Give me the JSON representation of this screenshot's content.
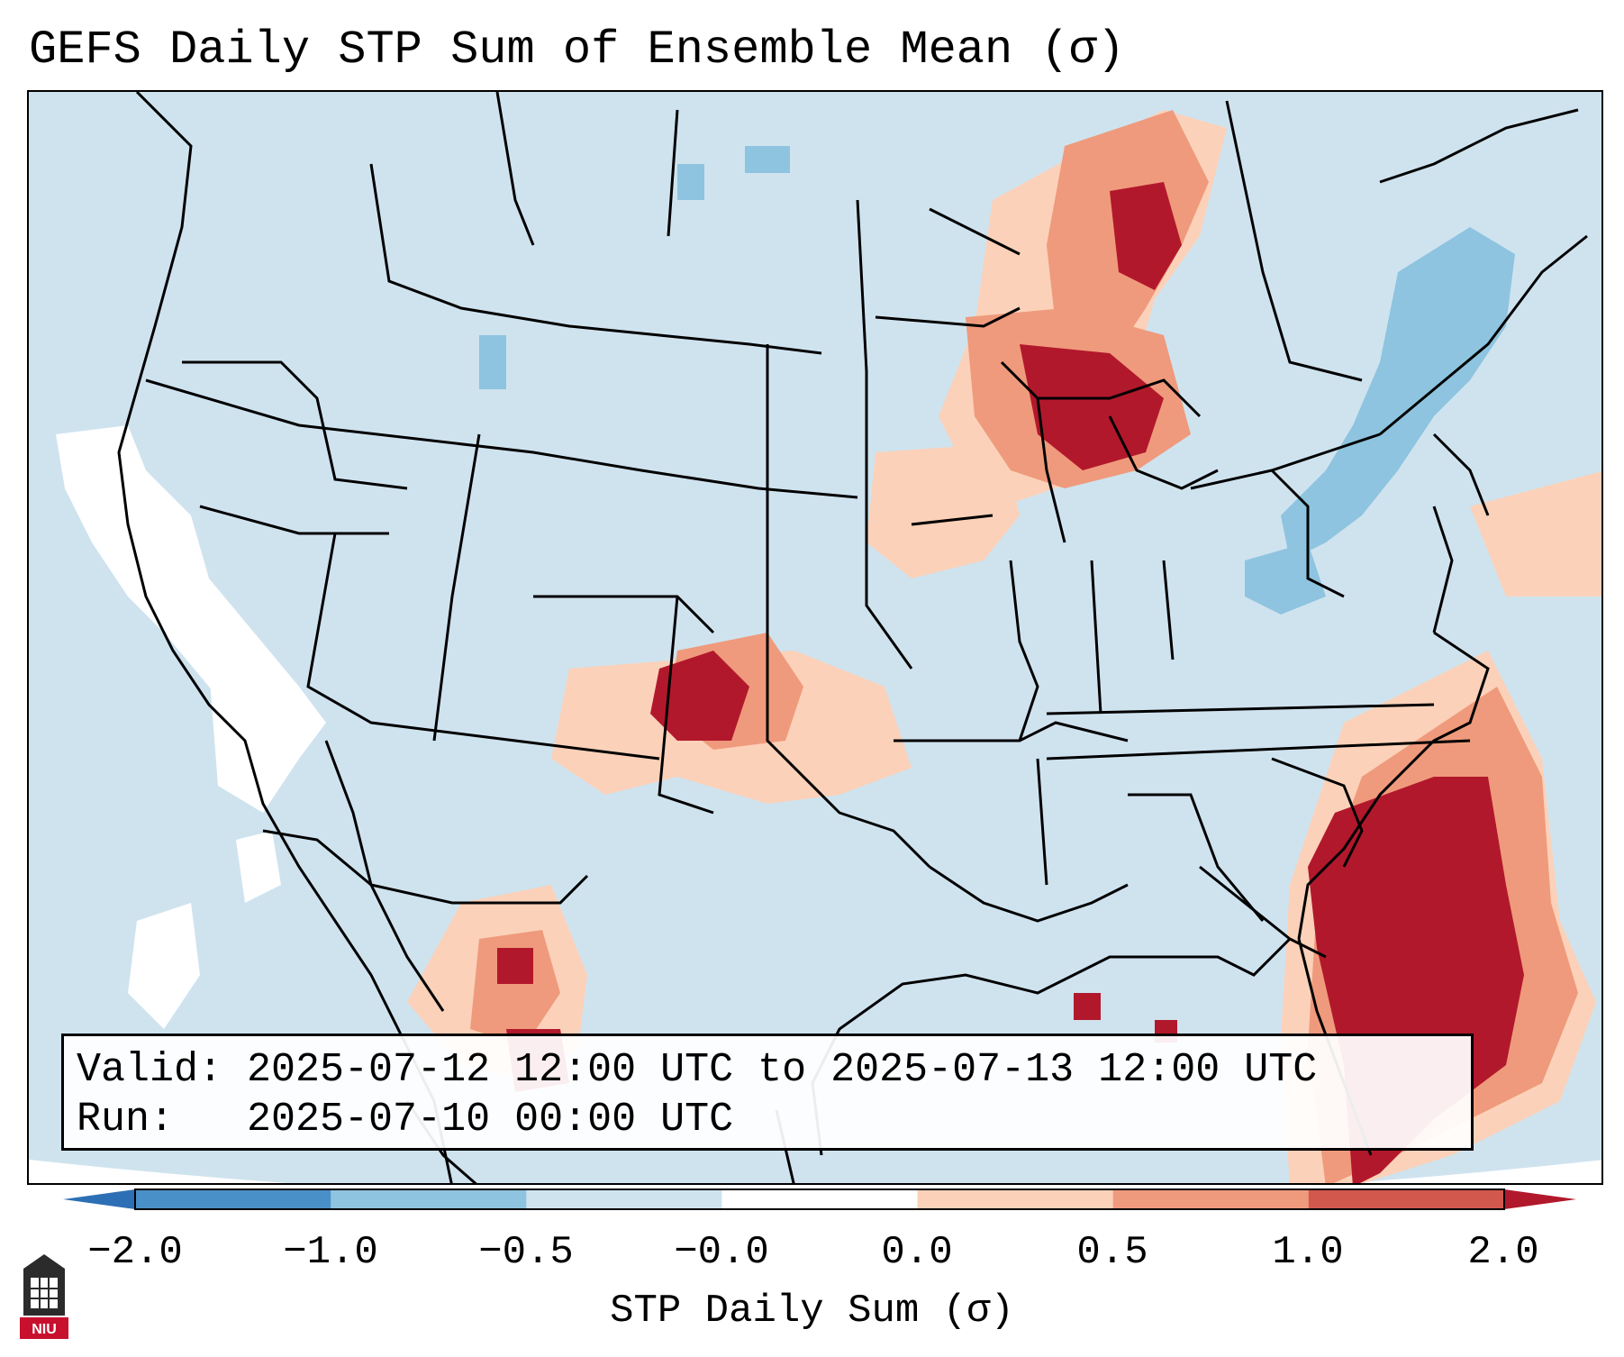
{
  "title": "GEFS Daily STP Sum of Ensemble Mean (σ)",
  "info": {
    "valid_label": "Valid: 2025-07-12 12:00 UTC to 2025-07-13 12:00 UTC",
    "run_label": "Run:   2025-07-10 00:00 UTC"
  },
  "colorbar": {
    "label": "STP Daily Sum (σ)",
    "ticks": [
      "−2.0",
      "−1.0",
      "−0.5",
      "−0.0",
      "0.0",
      "0.5",
      "1.0",
      "2.0"
    ],
    "bins": [
      {
        "color": "#4a90c8"
      },
      {
        "color": "#8ec4df"
      },
      {
        "color": "#cfe3ef"
      },
      {
        "color": "#ffffff"
      },
      {
        "color": "#fbd1b9"
      },
      {
        "color": "#ef9a7c"
      },
      {
        "color": "#d2584d"
      }
    ],
    "under_color": "#2d6fb4",
    "over_color": "#b2182b"
  },
  "logo": {
    "text": "NIU"
  },
  "colors": {
    "ocean_land_neutral": "#cfe3ef",
    "white_band": "#ffffff",
    "light_red": "#fbd1b9",
    "mid_red": "#ef9a7c",
    "dark_red": "#b2182b",
    "light_blue": "#8ec4df"
  }
}
